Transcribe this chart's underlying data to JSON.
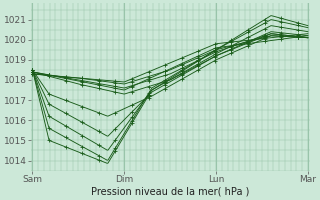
{
  "background_color": "#cce8d8",
  "grid_color": "#99c4aa",
  "line_color": "#1a5c1a",
  "marker_color": "#1a5c1a",
  "xlabel": "Pression niveau de la mer( hPa )",
  "xlabel_fontsize": 7,
  "tick_fontsize": 6.5,
  "ylim": [
    1013.5,
    1021.8
  ],
  "yticks": [
    1014,
    1015,
    1016,
    1017,
    1018,
    1019,
    1020,
    1021
  ],
  "xtick_labels": [
    "Sam",
    "Dim",
    "Lun",
    "Mar"
  ],
  "xtick_positions": [
    0,
    1,
    2,
    3
  ],
  "lines": [
    {
      "xp": [
        0,
        0.18,
        0.82,
        1.3,
        2.0,
        2.6,
        3.0
      ],
      "yp": [
        1018.5,
        1017.3,
        1016.2,
        1017.2,
        1019.0,
        1020.2,
        1020.1
      ]
    },
    {
      "xp": [
        0,
        0.18,
        0.82,
        1.3,
        2.0,
        2.6,
        3.0
      ],
      "yp": [
        1018.5,
        1016.8,
        1015.2,
        1017.4,
        1019.2,
        1020.4,
        1020.2
      ]
    },
    {
      "xp": [
        0,
        0.18,
        0.82,
        1.3,
        2.0,
        2.6,
        3.0
      ],
      "yp": [
        1018.5,
        1016.2,
        1014.5,
        1017.5,
        1019.3,
        1020.7,
        1020.4
      ]
    },
    {
      "xp": [
        0,
        0.18,
        0.82,
        1.3,
        2.0,
        2.6,
        3.0
      ],
      "yp": [
        1018.5,
        1015.6,
        1014.0,
        1017.6,
        1019.5,
        1021.0,
        1020.6
      ]
    },
    {
      "xp": [
        0,
        0.18,
        0.82,
        1.3,
        2.0,
        2.6,
        3.0
      ],
      "yp": [
        1018.5,
        1015.0,
        1013.85,
        1017.5,
        1019.5,
        1021.2,
        1020.7
      ]
    },
    {
      "xp": [
        0,
        0.5,
        1.0,
        1.5,
        2.0,
        2.6,
        3.0
      ],
      "yp": [
        1018.4,
        1017.8,
        1017.3,
        1018.0,
        1019.2,
        1020.3,
        1020.1
      ]
    },
    {
      "xp": [
        0,
        0.5,
        1.0,
        1.5,
        2.0,
        2.6,
        3.0
      ],
      "yp": [
        1018.4,
        1018.0,
        1017.6,
        1018.3,
        1019.4,
        1020.3,
        1020.1
      ]
    },
    {
      "xp": [
        0,
        0.5,
        1.0,
        1.5,
        2.0,
        2.6,
        3.0
      ],
      "yp": [
        1018.3,
        1018.1,
        1017.8,
        1018.5,
        1019.5,
        1020.2,
        1020.1
      ]
    },
    {
      "xp": [
        0,
        1.0,
        2.0,
        3.0
      ],
      "yp": [
        1018.4,
        1017.5,
        1019.6,
        1020.2
      ]
    },
    {
      "xp": [
        0,
        1.0,
        2.0,
        3.0
      ],
      "yp": [
        1018.3,
        1017.9,
        1019.8,
        1020.3
      ]
    }
  ],
  "vlines": [
    0,
    1,
    2,
    3
  ]
}
